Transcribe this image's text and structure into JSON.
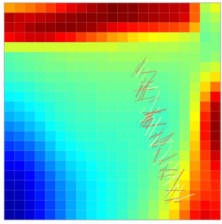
{
  "scene": {
    "description_hidden": "",
    "grid": {
      "rows": 22,
      "cols": 21,
      "cells": [
        [
          0.72,
          0.74,
          0.76,
          0.79,
          0.82,
          0.86,
          0.9,
          0.93,
          0.96,
          0.98,
          1.0,
          0.99,
          0.99,
          0.97,
          0.96,
          0.95,
          0.94,
          0.93,
          0.78,
          0.55,
          0.6
        ],
        [
          0.95,
          0.93,
          0.92,
          0.94,
          0.95,
          0.97,
          0.98,
          0.99,
          0.99,
          0.99,
          1.0,
          0.99,
          0.99,
          0.97,
          0.96,
          0.95,
          0.94,
          0.91,
          0.78,
          0.52,
          0.55
        ],
        [
          0.94,
          0.93,
          0.96,
          0.98,
          0.98,
          0.99,
          0.99,
          0.98,
          0.97,
          0.94,
          0.9,
          0.88,
          0.86,
          0.85,
          0.84,
          0.82,
          0.81,
          0.79,
          0.7,
          0.5,
          0.52
        ],
        [
          0.88,
          0.9,
          0.92,
          0.92,
          0.91,
          0.88,
          0.86,
          0.82,
          0.79,
          0.76,
          0.72,
          0.7,
          0.66,
          0.64,
          0.62,
          0.61,
          0.6,
          0.58,
          0.56,
          0.48,
          0.5
        ],
        [
          0.58,
          0.58,
          0.58,
          0.58,
          0.58,
          0.58,
          0.58,
          0.58,
          0.58,
          0.58,
          0.58,
          0.56,
          0.56,
          0.55,
          0.55,
          0.55,
          0.55,
          0.54,
          0.53,
          0.5,
          0.5
        ],
        [
          0.46,
          0.47,
          0.48,
          0.49,
          0.5,
          0.51,
          0.52,
          0.52,
          0.52,
          0.52,
          0.53,
          0.53,
          0.53,
          0.53,
          0.53,
          0.53,
          0.52,
          0.52,
          0.52,
          0.5,
          0.52
        ],
        [
          0.45,
          0.46,
          0.47,
          0.48,
          0.49,
          0.49,
          0.5,
          0.5,
          0.5,
          0.51,
          0.51,
          0.51,
          0.51,
          0.5,
          0.5,
          0.5,
          0.5,
          0.51,
          0.52,
          0.55,
          0.58
        ],
        [
          0.43,
          0.44,
          0.45,
          0.46,
          0.47,
          0.47,
          0.48,
          0.48,
          0.49,
          0.49,
          0.49,
          0.49,
          0.49,
          0.49,
          0.48,
          0.48,
          0.49,
          0.5,
          0.54,
          0.6,
          0.65
        ],
        [
          0.4,
          0.41,
          0.42,
          0.44,
          0.45,
          0.46,
          0.46,
          0.47,
          0.47,
          0.48,
          0.48,
          0.48,
          0.48,
          0.48,
          0.47,
          0.47,
          0.48,
          0.5,
          0.56,
          0.66,
          0.76
        ],
        [
          0.37,
          0.38,
          0.4,
          0.42,
          0.43,
          0.44,
          0.45,
          0.46,
          0.46,
          0.47,
          0.47,
          0.47,
          0.47,
          0.47,
          0.46,
          0.46,
          0.47,
          0.5,
          0.58,
          0.72,
          0.88
        ],
        [
          0.33,
          0.35,
          0.37,
          0.39,
          0.41,
          0.43,
          0.44,
          0.45,
          0.45,
          0.46,
          0.46,
          0.46,
          0.46,
          0.46,
          0.45,
          0.45,
          0.46,
          0.5,
          0.6,
          0.8,
          0.95
        ],
        [
          0.3,
          0.32,
          0.34,
          0.37,
          0.4,
          0.42,
          0.43,
          0.44,
          0.44,
          0.45,
          0.45,
          0.45,
          0.45,
          0.45,
          0.44,
          0.44,
          0.46,
          0.5,
          0.62,
          0.84,
          0.97
        ],
        [
          0.26,
          0.28,
          0.31,
          0.34,
          0.38,
          0.4,
          0.42,
          0.43,
          0.43,
          0.44,
          0.44,
          0.44,
          0.44,
          0.44,
          0.44,
          0.44,
          0.46,
          0.51,
          0.64,
          0.86,
          0.98
        ],
        [
          0.22,
          0.24,
          0.27,
          0.31,
          0.35,
          0.38,
          0.4,
          0.42,
          0.42,
          0.43,
          0.43,
          0.44,
          0.44,
          0.44,
          0.44,
          0.45,
          0.47,
          0.52,
          0.66,
          0.86,
          0.98
        ],
        [
          0.18,
          0.2,
          0.23,
          0.27,
          0.32,
          0.36,
          0.38,
          0.4,
          0.41,
          0.42,
          0.43,
          0.43,
          0.44,
          0.44,
          0.45,
          0.46,
          0.48,
          0.54,
          0.68,
          0.84,
          0.96
        ],
        [
          0.14,
          0.16,
          0.19,
          0.24,
          0.29,
          0.33,
          0.36,
          0.38,
          0.4,
          0.41,
          0.42,
          0.43,
          0.44,
          0.45,
          0.46,
          0.47,
          0.5,
          0.57,
          0.7,
          0.82,
          0.92
        ],
        [
          0.11,
          0.12,
          0.16,
          0.21,
          0.26,
          0.3,
          0.34,
          0.36,
          0.38,
          0.4,
          0.41,
          0.42,
          0.44,
          0.45,
          0.47,
          0.49,
          0.53,
          0.6,
          0.72,
          0.8,
          0.88
        ],
        [
          0.08,
          0.09,
          0.13,
          0.18,
          0.23,
          0.28,
          0.32,
          0.35,
          0.37,
          0.39,
          0.41,
          0.42,
          0.44,
          0.46,
          0.48,
          0.51,
          0.56,
          0.63,
          0.74,
          0.8,
          0.85
        ],
        [
          0.06,
          0.07,
          0.11,
          0.16,
          0.21,
          0.26,
          0.3,
          0.34,
          0.36,
          0.38,
          0.4,
          0.42,
          0.44,
          0.46,
          0.49,
          0.53,
          0.59,
          0.66,
          0.76,
          0.81,
          0.84
        ],
        [
          0.05,
          0.06,
          0.1,
          0.15,
          0.2,
          0.25,
          0.29,
          0.33,
          0.36,
          0.38,
          0.4,
          0.42,
          0.44,
          0.47,
          0.5,
          0.55,
          0.61,
          0.69,
          0.79,
          0.83,
          0.84
        ],
        [
          0.04,
          0.05,
          0.09,
          0.14,
          0.19,
          0.24,
          0.29,
          0.33,
          0.36,
          0.38,
          0.4,
          0.42,
          0.45,
          0.48,
          0.52,
          0.57,
          0.64,
          0.73,
          0.83,
          0.87,
          0.86
        ],
        [
          0.04,
          0.05,
          0.09,
          0.14,
          0.19,
          0.24,
          0.29,
          0.33,
          0.36,
          0.38,
          0.4,
          0.43,
          0.46,
          0.49,
          0.53,
          0.59,
          0.67,
          0.77,
          0.86,
          0.9,
          0.88
        ]
      ]
    },
    "colors": {
      "background": "#ffffff",
      "gridline": "#c8c8c8",
      "stroke_primary": "#e7f3a6",
      "stroke_secondary": "#c07c63"
    }
  }
}
